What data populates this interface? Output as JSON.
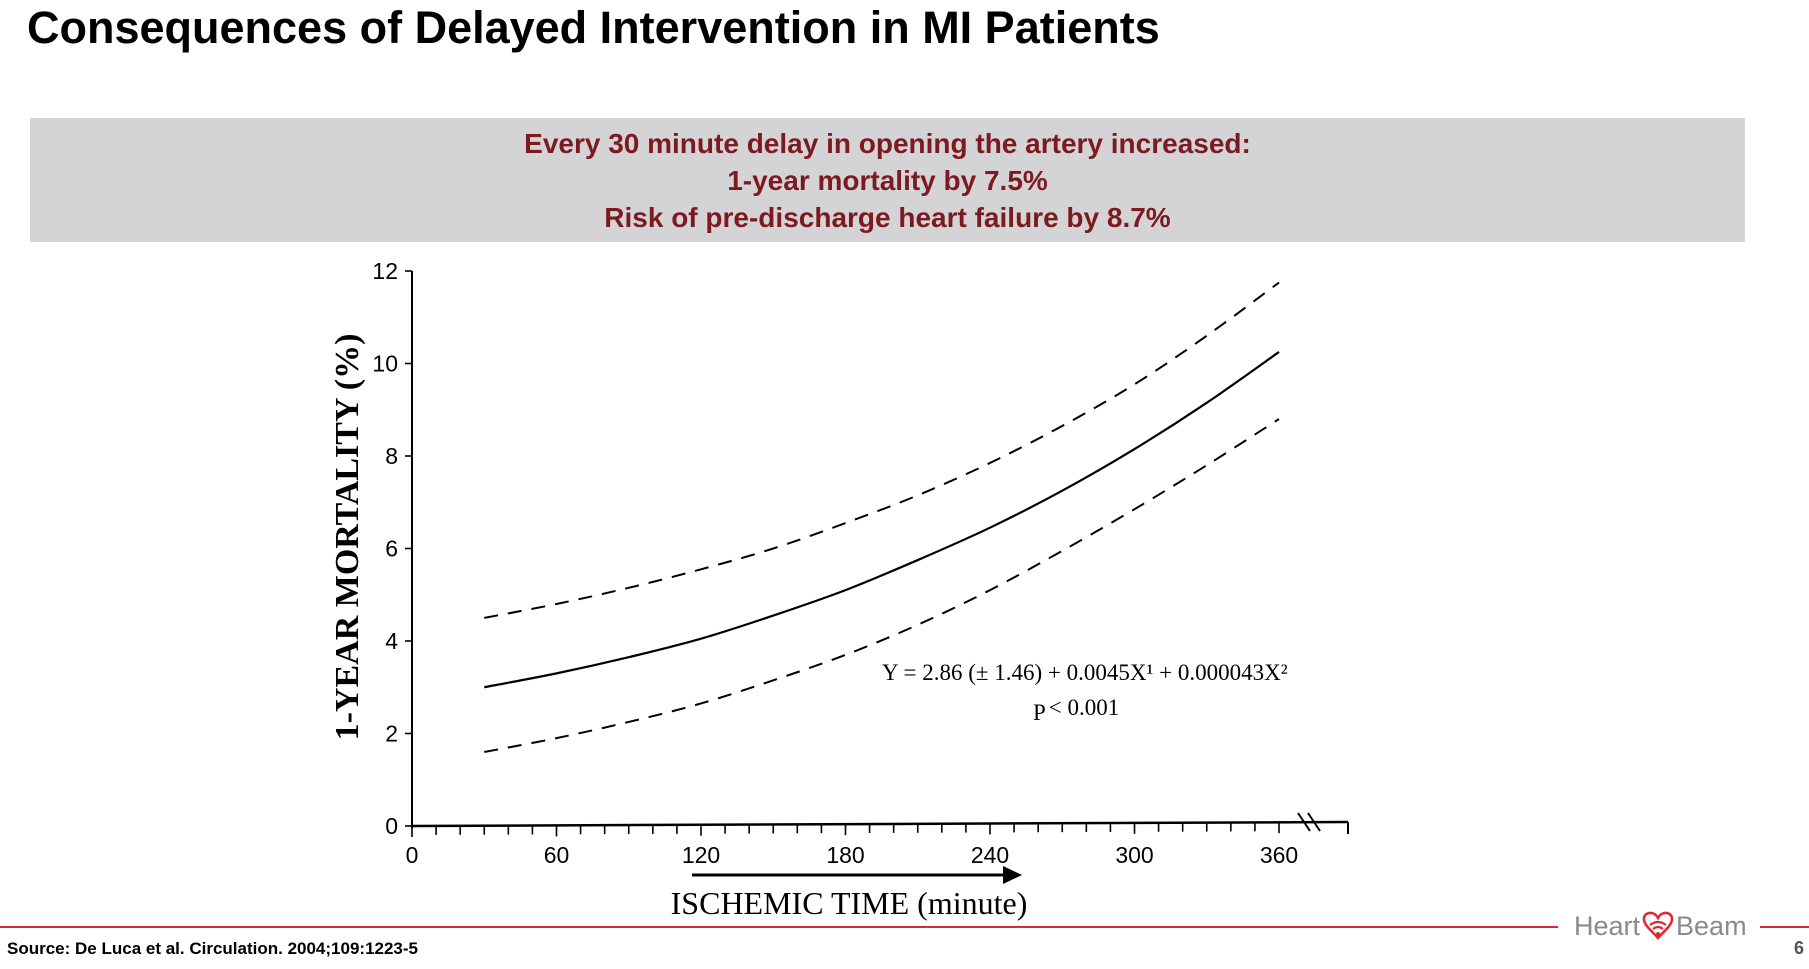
{
  "slide": {
    "title": "Consequences of Delayed Intervention in MI Patients",
    "banner": {
      "lines": [
        "Every 30 minute delay in opening the artery increased:",
        "1-year mortality by 7.5%",
        "Risk of pre-discharge heart failure by 8.7%"
      ],
      "text_color": "#7d1a1f",
      "background": "#d4d4d6"
    },
    "source": "Source:  De Luca et al. Circulation. 2004;109:1223-5",
    "page_number": "6",
    "logo": {
      "text_left": "Heart",
      "text_right": "Beam",
      "icon": "heart-wifi-icon",
      "accent": "#e0282e"
    }
  },
  "chart_data": {
    "type": "line",
    "title": "",
    "xlabel": "ISCHEMIC TIME (minute)",
    "ylabel": "1-YEAR MORTALITY (%)",
    "xlim": [
      0,
      380
    ],
    "ylim": [
      0,
      12
    ],
    "xticks": [
      0,
      60,
      120,
      180,
      240,
      300,
      360
    ],
    "yticks": [
      0,
      2,
      4,
      6,
      8,
      10,
      12
    ],
    "x_minor_tick_step": 10,
    "x_axis_break": true,
    "grid": false,
    "annotations": {
      "equation": "Y = 2.86 (± 1.46) + 0.0045X¹ + 0.000043X²",
      "equation_parts": [
        "Y = 2.86 (",
        "±",
        " 1.46) + 0.0045X",
        "1",
        " + 0.000043X",
        "2"
      ],
      "p_prefix": "P",
      "p_value": "< 0.001"
    },
    "x": [
      30,
      60,
      90,
      120,
      150,
      180,
      210,
      240,
      270,
      300,
      330,
      360
    ],
    "series": [
      {
        "style": "solid",
        "values": [
          3.0,
          3.3,
          3.65,
          4.05,
          4.55,
          5.1,
          5.75,
          6.45,
          7.25,
          8.15,
          9.15,
          10.25
        ]
      },
      {
        "style": "dashed",
        "values": [
          4.5,
          4.8,
          5.15,
          5.55,
          6.0,
          6.55,
          7.15,
          7.85,
          8.65,
          9.55,
          10.6,
          11.75
        ]
      },
      {
        "style": "dashed",
        "values": [
          1.6,
          1.9,
          2.25,
          2.65,
          3.15,
          3.7,
          4.35,
          5.1,
          5.95,
          6.85,
          7.8,
          8.8
        ]
      }
    ]
  }
}
